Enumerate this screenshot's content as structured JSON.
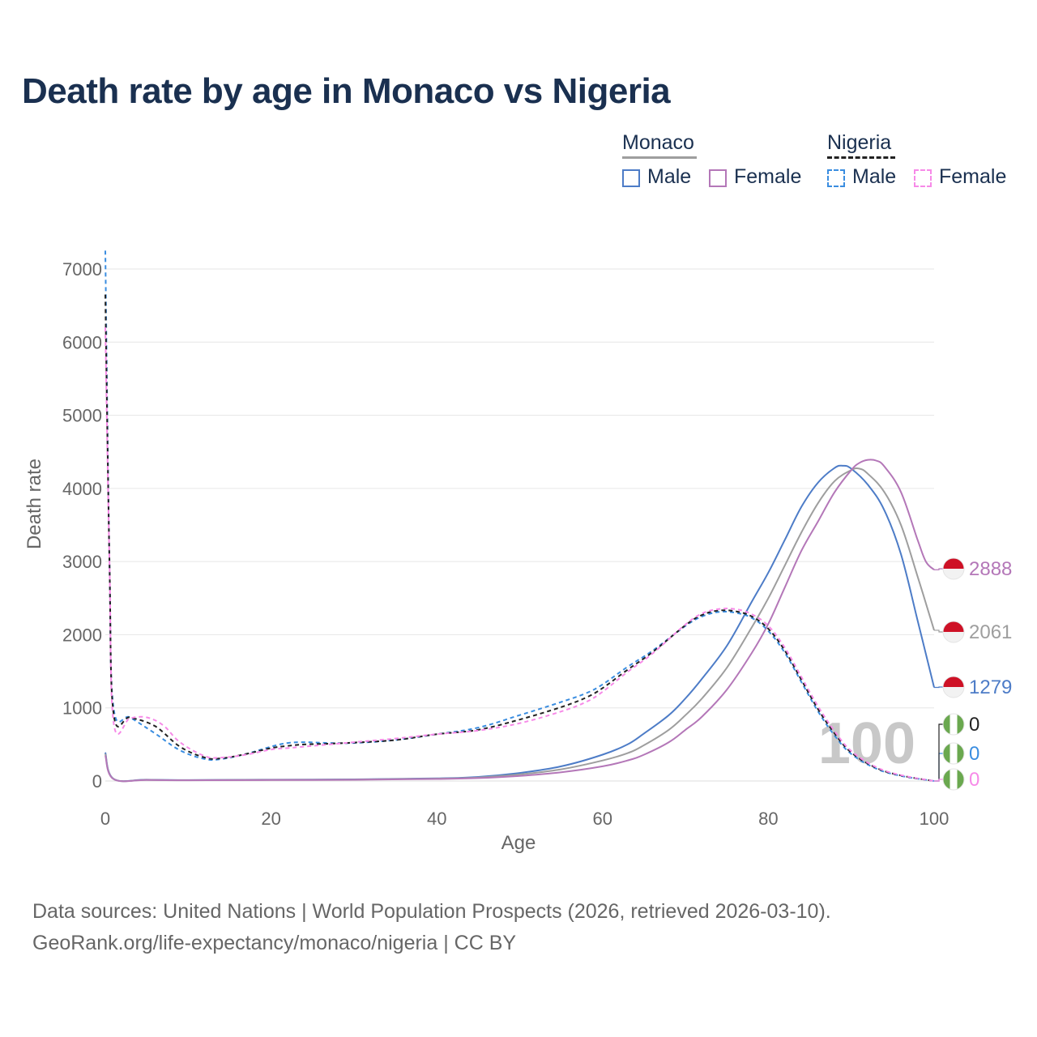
{
  "title": "Death rate by age in Monaco vs Nigeria",
  "legend": {
    "groups": [
      {
        "name": "Monaco",
        "line_color": "#9e9e9e",
        "dashed": false
      },
      {
        "name": "Nigeria",
        "line_color": "#222222",
        "dashed": true
      }
    ],
    "items": [
      {
        "label": "Male",
        "color": "#4d7cc7",
        "dashed": false
      },
      {
        "label": "Female",
        "color": "#b477b8",
        "dashed": false
      },
      {
        "label": "Male",
        "color": "#3a8de0",
        "dashed": true
      },
      {
        "label": "Female",
        "color": "#f78ae8",
        "dashed": true
      }
    ]
  },
  "source": {
    "line1": "Data sources: United Nations | World Population Prospects (2026, retrieved 2026-03-10).",
    "line2": "GeoRank.org/life-expectancy/monaco/nigeria | CC BY"
  },
  "chart_data": {
    "type": "line",
    "title": "Death rate by age in Monaco vs Nigeria",
    "xlabel": "Age",
    "ylabel": "Death rate",
    "xlim": [
      0,
      100
    ],
    "ylim": [
      0,
      7000
    ],
    "xticks": [
      0,
      20,
      40,
      60,
      80,
      100
    ],
    "yticks": [
      0,
      1000,
      2000,
      3000,
      4000,
      5000,
      6000,
      7000
    ],
    "grid": true,
    "watermark": "100",
    "series": [
      {
        "name": "Monaco Male",
        "color": "#4d7cc7",
        "dashed": false,
        "flag": "monaco",
        "end_label": "1279",
        "points": [
          [
            0,
            390
          ],
          [
            1,
            30
          ],
          [
            5,
            18
          ],
          [
            10,
            12
          ],
          [
            20,
            18
          ],
          [
            30,
            22
          ],
          [
            40,
            35
          ],
          [
            45,
            55
          ],
          [
            50,
            110
          ],
          [
            55,
            200
          ],
          [
            60,
            360
          ],
          [
            63,
            500
          ],
          [
            65,
            650
          ],
          [
            68,
            900
          ],
          [
            70,
            1130
          ],
          [
            72,
            1400
          ],
          [
            75,
            1850
          ],
          [
            78,
            2450
          ],
          [
            80,
            2850
          ],
          [
            82,
            3300
          ],
          [
            84,
            3750
          ],
          [
            86,
            4080
          ],
          [
            88,
            4280
          ],
          [
            89,
            4310
          ],
          [
            90,
            4270
          ],
          [
            92,
            4050
          ],
          [
            94,
            3700
          ],
          [
            96,
            3100
          ],
          [
            98,
            2200
          ],
          [
            100,
            1279
          ]
        ]
      },
      {
        "name": "Monaco Both",
        "color": "#9e9e9e",
        "dashed": false,
        "flag": "monaco",
        "end_label": "2061",
        "points": [
          [
            0,
            370
          ],
          [
            1,
            28
          ],
          [
            5,
            16
          ],
          [
            10,
            11
          ],
          [
            20,
            16
          ],
          [
            30,
            20
          ],
          [
            40,
            32
          ],
          [
            45,
            48
          ],
          [
            50,
            90
          ],
          [
            55,
            160
          ],
          [
            60,
            280
          ],
          [
            63,
            380
          ],
          [
            65,
            490
          ],
          [
            68,
            700
          ],
          [
            70,
            900
          ],
          [
            72,
            1130
          ],
          [
            75,
            1550
          ],
          [
            78,
            2100
          ],
          [
            80,
            2500
          ],
          [
            82,
            2950
          ],
          [
            84,
            3400
          ],
          [
            86,
            3800
          ],
          [
            88,
            4100
          ],
          [
            90,
            4250
          ],
          [
            91,
            4270
          ],
          [
            92,
            4200
          ],
          [
            94,
            3950
          ],
          [
            96,
            3500
          ],
          [
            98,
            2800
          ],
          [
            100,
            2061
          ]
        ]
      },
      {
        "name": "Monaco Female",
        "color": "#b477b8",
        "dashed": false,
        "flag": "monaco",
        "end_label": "2888",
        "points": [
          [
            0,
            350
          ],
          [
            1,
            26
          ],
          [
            5,
            14
          ],
          [
            10,
            10
          ],
          [
            20,
            13
          ],
          [
            30,
            17
          ],
          [
            40,
            28
          ],
          [
            45,
            40
          ],
          [
            50,
            70
          ],
          [
            55,
            120
          ],
          [
            60,
            200
          ],
          [
            63,
            280
          ],
          [
            65,
            360
          ],
          [
            68,
            530
          ],
          [
            70,
            700
          ],
          [
            72,
            880
          ],
          [
            75,
            1250
          ],
          [
            78,
            1750
          ],
          [
            80,
            2150
          ],
          [
            82,
            2650
          ],
          [
            84,
            3150
          ],
          [
            86,
            3550
          ],
          [
            88,
            3950
          ],
          [
            90,
            4250
          ],
          [
            91,
            4350
          ],
          [
            92,
            4390
          ],
          [
            93,
            4380
          ],
          [
            94,
            4300
          ],
          [
            96,
            3950
          ],
          [
            98,
            3300
          ],
          [
            99,
            3000
          ],
          [
            100,
            2888
          ]
        ]
      },
      {
        "name": "Nigeria Male",
        "color": "#3a8de0",
        "dashed": true,
        "flag": "nigeria",
        "end_label": "0",
        "points": [
          [
            0,
            7250
          ],
          [
            0.5,
            3000
          ],
          [
            1,
            1000
          ],
          [
            3,
            870
          ],
          [
            6,
            650
          ],
          [
            9,
            420
          ],
          [
            12,
            300
          ],
          [
            14,
            300
          ],
          [
            17,
            370
          ],
          [
            20,
            470
          ],
          [
            22,
            520
          ],
          [
            24,
            530
          ],
          [
            27,
            520
          ],
          [
            30,
            520
          ],
          [
            35,
            560
          ],
          [
            40,
            640
          ],
          [
            45,
            730
          ],
          [
            50,
            900
          ],
          [
            55,
            1080
          ],
          [
            58,
            1200
          ],
          [
            60,
            1320
          ],
          [
            63,
            1560
          ],
          [
            66,
            1780
          ],
          [
            70,
            2120
          ],
          [
            72,
            2250
          ],
          [
            74,
            2310
          ],
          [
            76,
            2300
          ],
          [
            78,
            2230
          ],
          [
            80,
            2050
          ],
          [
            82,
            1750
          ],
          [
            84,
            1350
          ],
          [
            86,
            950
          ],
          [
            88,
            620
          ],
          [
            90,
            370
          ],
          [
            93,
            170
          ],
          [
            96,
            70
          ],
          [
            100,
            0
          ]
        ]
      },
      {
        "name": "Nigeria Both",
        "color": "#222222",
        "dashed": true,
        "flag": "nigeria",
        "end_label": "0",
        "points": [
          [
            0,
            6650
          ],
          [
            0.5,
            3000
          ],
          [
            1,
            920
          ],
          [
            3,
            870
          ],
          [
            6,
            750
          ],
          [
            9,
            470
          ],
          [
            12,
            320
          ],
          [
            14,
            310
          ],
          [
            17,
            370
          ],
          [
            20,
            450
          ],
          [
            22,
            480
          ],
          [
            24,
            500
          ],
          [
            27,
            510
          ],
          [
            30,
            525
          ],
          [
            35,
            560
          ],
          [
            40,
            640
          ],
          [
            45,
            700
          ],
          [
            50,
            840
          ],
          [
            55,
            1010
          ],
          [
            58,
            1140
          ],
          [
            60,
            1270
          ],
          [
            63,
            1520
          ],
          [
            66,
            1760
          ],
          [
            70,
            2130
          ],
          [
            72,
            2270
          ],
          [
            74,
            2330
          ],
          [
            76,
            2320
          ],
          [
            78,
            2250
          ],
          [
            80,
            2080
          ],
          [
            82,
            1780
          ],
          [
            84,
            1380
          ],
          [
            86,
            980
          ],
          [
            88,
            650
          ],
          [
            90,
            390
          ],
          [
            93,
            180
          ],
          [
            96,
            75
          ],
          [
            100,
            0
          ]
        ]
      },
      {
        "name": "Nigeria Female",
        "color": "#f78ae8",
        "dashed": true,
        "flag": "nigeria",
        "end_label": "0",
        "points": [
          [
            0,
            6200
          ],
          [
            0.5,
            3000
          ],
          [
            1,
            800
          ],
          [
            3,
            860
          ],
          [
            5,
            870
          ],
          [
            7,
            760
          ],
          [
            9,
            530
          ],
          [
            12,
            340
          ],
          [
            14,
            320
          ],
          [
            17,
            360
          ],
          [
            20,
            430
          ],
          [
            22,
            450
          ],
          [
            24,
            470
          ],
          [
            27,
            500
          ],
          [
            30,
            530
          ],
          [
            35,
            580
          ],
          [
            40,
            640
          ],
          [
            45,
            690
          ],
          [
            50,
            790
          ],
          [
            55,
            950
          ],
          [
            58,
            1080
          ],
          [
            60,
            1220
          ],
          [
            63,
            1490
          ],
          [
            66,
            1740
          ],
          [
            70,
            2140
          ],
          [
            72,
            2290
          ],
          [
            74,
            2350
          ],
          [
            76,
            2350
          ],
          [
            78,
            2280
          ],
          [
            80,
            2120
          ],
          [
            82,
            1820
          ],
          [
            84,
            1420
          ],
          [
            86,
            1020
          ],
          [
            88,
            680
          ],
          [
            90,
            410
          ],
          [
            93,
            190
          ],
          [
            96,
            80
          ],
          [
            100,
            0
          ]
        ]
      }
    ]
  }
}
